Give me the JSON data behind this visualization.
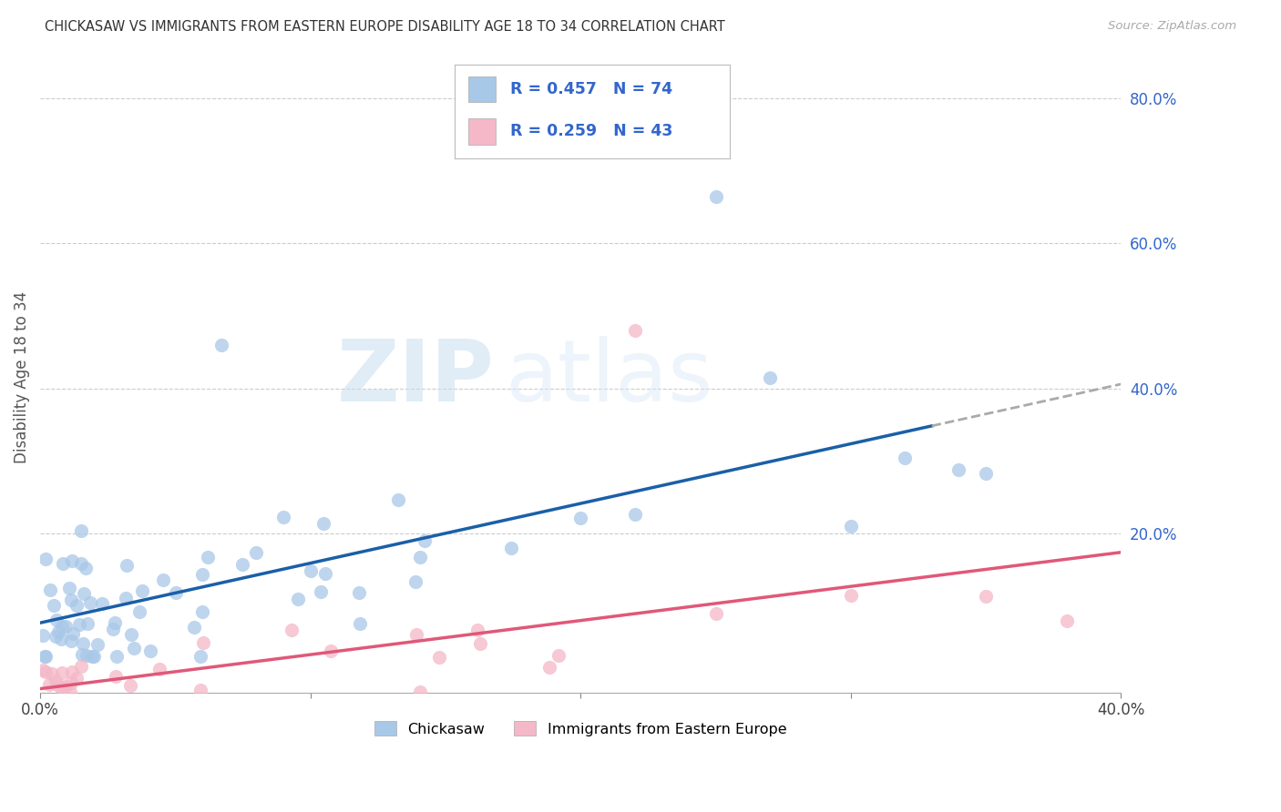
{
  "title": "CHICKASAW VS IMMIGRANTS FROM EASTERN EUROPE DISABILITY AGE 18 TO 34 CORRELATION CHART",
  "source": "Source: ZipAtlas.com",
  "ylabel": "Disability Age 18 to 34",
  "xlim": [
    0.0,
    0.4
  ],
  "ylim": [
    -0.02,
    0.85
  ],
  "chickasaw_color": "#a8c8e8",
  "immigrant_color": "#f4b8c8",
  "trendline_chickasaw_color": "#1a5fa8",
  "trendline_immigrant_color": "#e05878",
  "trendline_extended_color": "#aaaaaa",
  "R_chickasaw": 0.457,
  "N_chickasaw": 74,
  "R_immigrant": 0.259,
  "N_immigrant": 43,
  "watermark_zip": "ZIP",
  "watermark_atlas": "atlas",
  "background_color": "#ffffff",
  "grid_color": "#cccccc",
  "legend_text_color": "#3366cc",
  "axis_tick_color": "#444444"
}
